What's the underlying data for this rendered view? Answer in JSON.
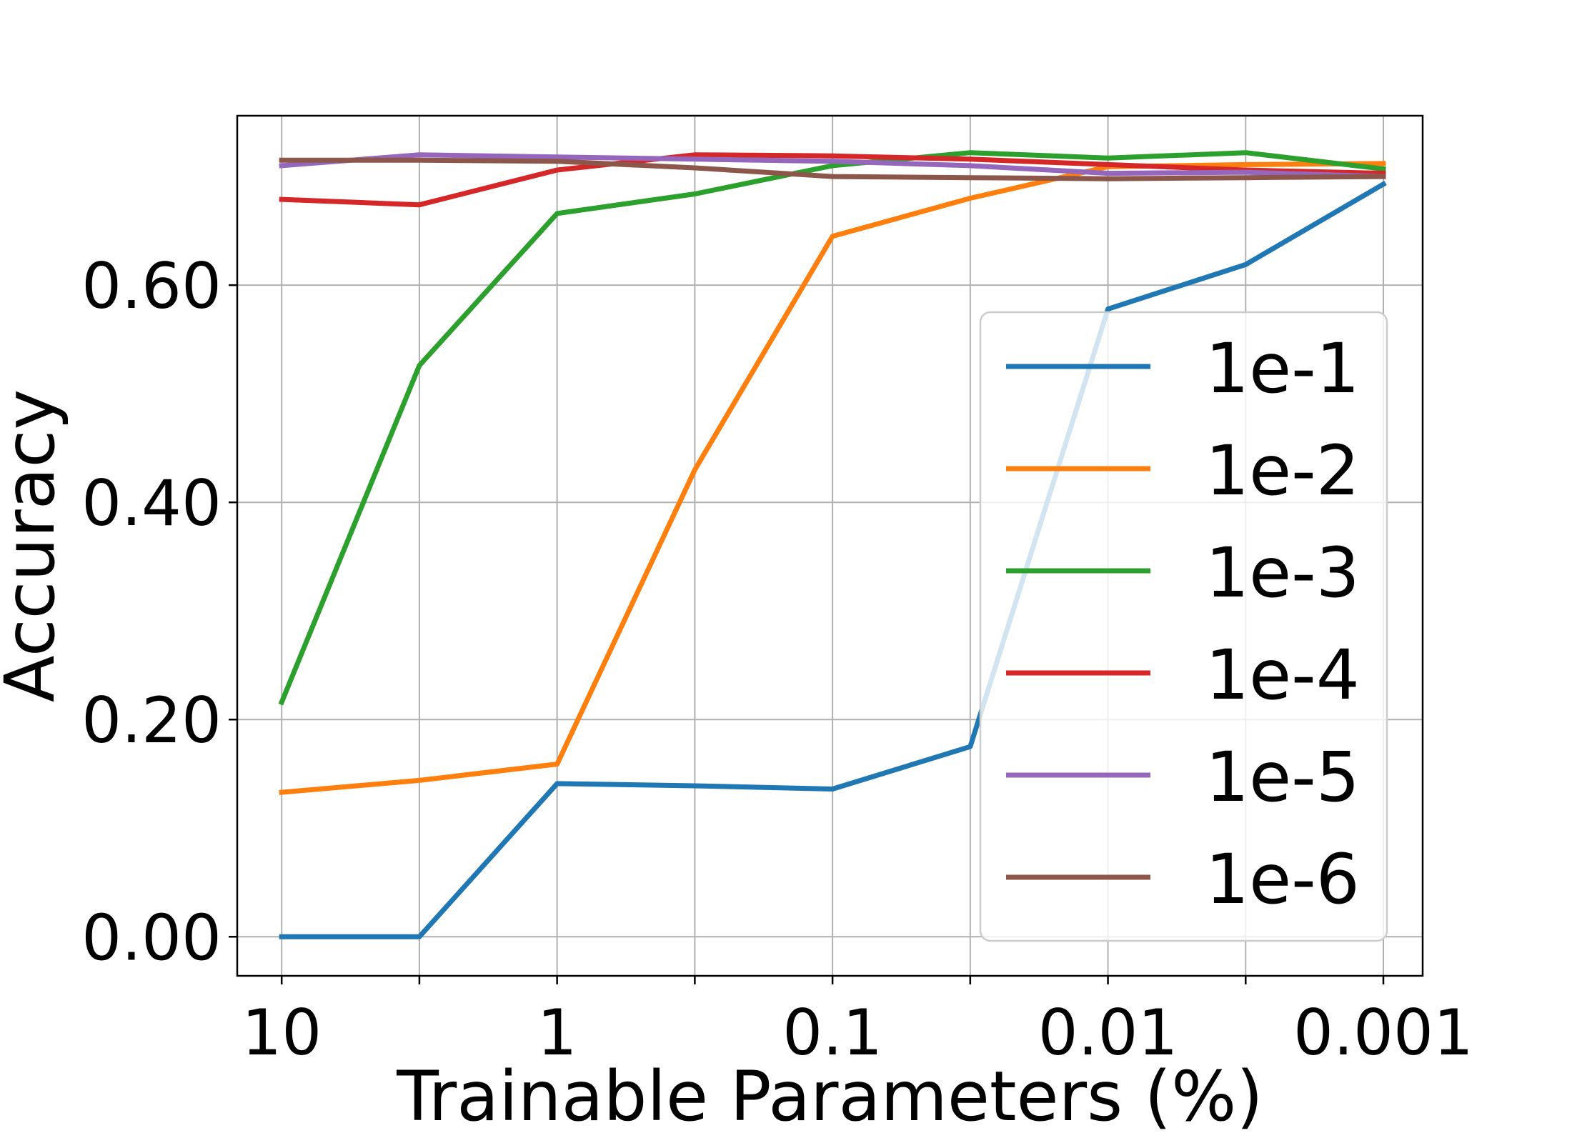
{
  "chart_data": {
    "type": "line",
    "title": "",
    "xlabel": "Trainable Parameters (%)",
    "ylabel": "Accuracy",
    "x_scale": "log",
    "x_reversed": true,
    "x": [
      10,
      3.1623,
      1,
      0.31623,
      0.1,
      0.031623,
      0.01,
      0.0031623,
      0.001
    ],
    "x_ticks": [
      10,
      3.1623,
      1,
      0.31623,
      0.1,
      0.031623,
      0.01,
      0.0031623,
      0.001
    ],
    "x_tick_labels": [
      "10",
      "",
      "1",
      "",
      "0.1",
      "",
      "0.01",
      "",
      "0.001"
    ],
    "xlim": [
      14.5,
      0.00072
    ],
    "ylim": [
      -0.036,
      0.756
    ],
    "y_ticks": [
      0.0,
      0.2,
      0.4,
      0.6
    ],
    "y_tick_labels": [
      "0.00",
      "0.20",
      "0.40",
      "0.60"
    ],
    "grid": true,
    "legend_position": "center-right",
    "series": [
      {
        "name": "1e-1",
        "color": "#1f77b4",
        "values": [
          0.0,
          0.0,
          0.141,
          0.139,
          0.136,
          0.175,
          0.578,
          0.619,
          0.693
        ]
      },
      {
        "name": "1e-2",
        "color": "#ff7f0e",
        "values": [
          0.133,
          0.144,
          0.159,
          0.43,
          0.645,
          0.68,
          0.709,
          0.711,
          0.712
        ]
      },
      {
        "name": "1e-3",
        "color": "#2ca02c",
        "values": [
          0.216,
          0.526,
          0.666,
          0.684,
          0.71,
          0.722,
          0.717,
          0.722,
          0.707
        ]
      },
      {
        "name": "1e-4",
        "color": "#d62728",
        "values": [
          0.679,
          0.674,
          0.706,
          0.72,
          0.719,
          0.716,
          0.711,
          0.706,
          0.703
        ]
      },
      {
        "name": "1e-5",
        "color": "#9467bd",
        "values": [
          0.71,
          0.72,
          0.718,
          0.716,
          0.714,
          0.71,
          0.703,
          0.704,
          0.7
        ]
      },
      {
        "name": "1e-6",
        "color": "#8c564b",
        "values": [
          0.715,
          0.715,
          0.714,
          0.708,
          0.7,
          0.699,
          0.698,
          0.699,
          0.7
        ]
      }
    ]
  }
}
